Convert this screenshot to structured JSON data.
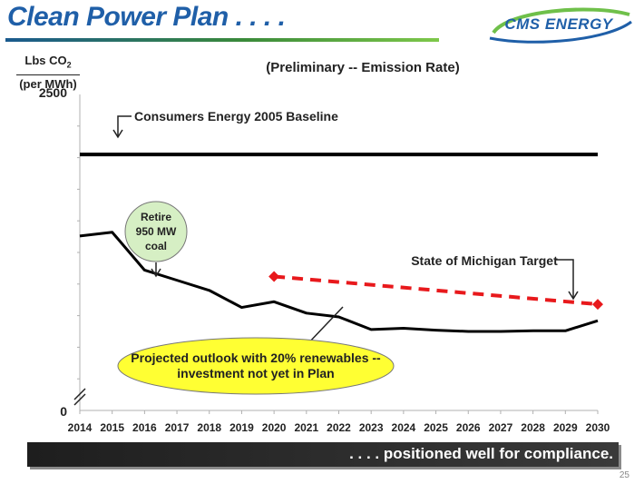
{
  "header": {
    "title": "Clean Power Plan . . . .",
    "logo_text": "CMS ENERGY"
  },
  "footer": {
    "text": ". . . . positioned well for compliance.",
    "page_number": "25"
  },
  "colors": {
    "title_blue": "#1f5fa8",
    "target_red": "#e8191c",
    "bubble_green": "#d6efc4",
    "bubble_yellow": "#ffff33"
  },
  "chart_data": {
    "type": "line",
    "title": "(Preliminary -- Emission Rate)",
    "ylabel_line1": "Lbs CO",
    "ylabel_sub": "2",
    "ylabel_line2": "(per MWh)",
    "ylim": [
      0,
      2500
    ],
    "ytick_labels": [
      "0",
      "2500"
    ],
    "categories": [
      "2014",
      "2015",
      "2016",
      "2017",
      "2018",
      "2019",
      "2020",
      "2021",
      "2022",
      "2023",
      "2024",
      "2025",
      "2026",
      "2027",
      "2028",
      "2029",
      "2030"
    ],
    "series": [
      {
        "name": "Consumers Energy 2005 Baseline",
        "style": "solid-black-thick",
        "x": [
          2014,
          2030
        ],
        "values": [
          2025,
          2025
        ]
      },
      {
        "name": "Projected outlook",
        "style": "solid-black",
        "x": [
          2014,
          2015,
          2016,
          2017,
          2018,
          2019,
          2020,
          2021,
          2022,
          2023,
          2024,
          2025,
          2026,
          2027,
          2028,
          2029,
          2030
        ],
        "values": [
          1380,
          1410,
          1110,
          1030,
          950,
          815,
          860,
          770,
          740,
          640,
          650,
          635,
          625,
          625,
          630,
          630,
          710
        ]
      },
      {
        "name": "State of Michigan Target",
        "style": "dashed-red",
        "x": [
          2020,
          2030
        ],
        "values": [
          1060,
          840
        ]
      }
    ],
    "annotations": {
      "baseline_label": "Consumers Energy 2005 Baseline",
      "retire_line1": "Retire",
      "retire_line2": "950 MW",
      "retire_line3": "coal",
      "target_label": "State of Michigan Target",
      "outlook_line1": "Projected outlook with 20% renewables --",
      "outlook_line2": "investment not yet in Plan"
    }
  }
}
